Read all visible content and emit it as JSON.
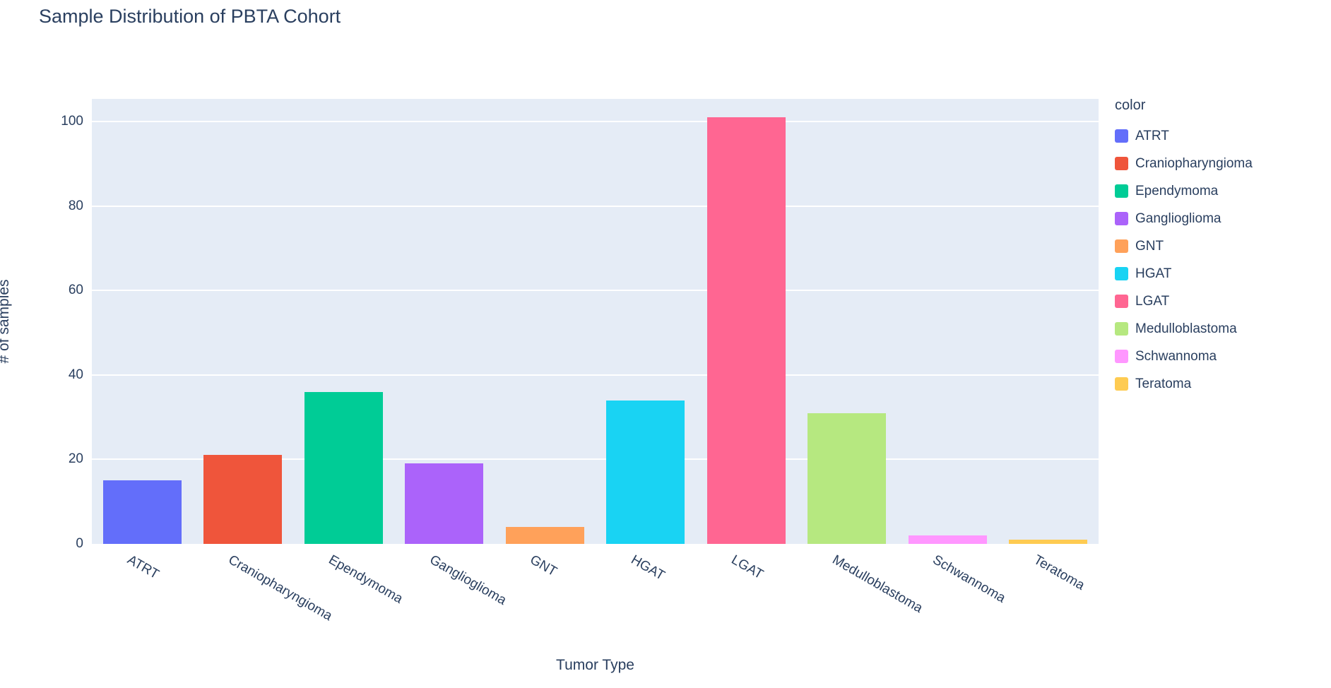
{
  "chart_data": {
    "type": "bar",
    "title": "Sample Distribution of PBTA Cohort",
    "xlabel": "Tumor Type",
    "ylabel": "# of samples",
    "legend_title": "color",
    "legend_position": "right",
    "grid": true,
    "plot_bg_color": "#e5ecf6",
    "grid_color": "#ffffff",
    "text_color": "#2a3f5f",
    "categories": [
      "ATRT",
      "Craniopharyngioma",
      "Ependymoma",
      "Ganglioglioma",
      "GNT",
      "HGAT",
      "LGAT",
      "Medulloblastoma",
      "Schwannoma",
      "Teratoma"
    ],
    "values": [
      15,
      21,
      36,
      19,
      4,
      34,
      101,
      31,
      2,
      1
    ],
    "colors": [
      "#636EFA",
      "#EF553B",
      "#00CC96",
      "#AB63FA",
      "#FFA15A",
      "#19D3F3",
      "#FF6692",
      "#B6E880",
      "#FF97FF",
      "#FECB52"
    ],
    "ylim": [
      0,
      105.4
    ],
    "yticks": [
      0,
      20,
      40,
      60,
      80,
      100
    ],
    "x_tick_angle_deg": 30
  }
}
